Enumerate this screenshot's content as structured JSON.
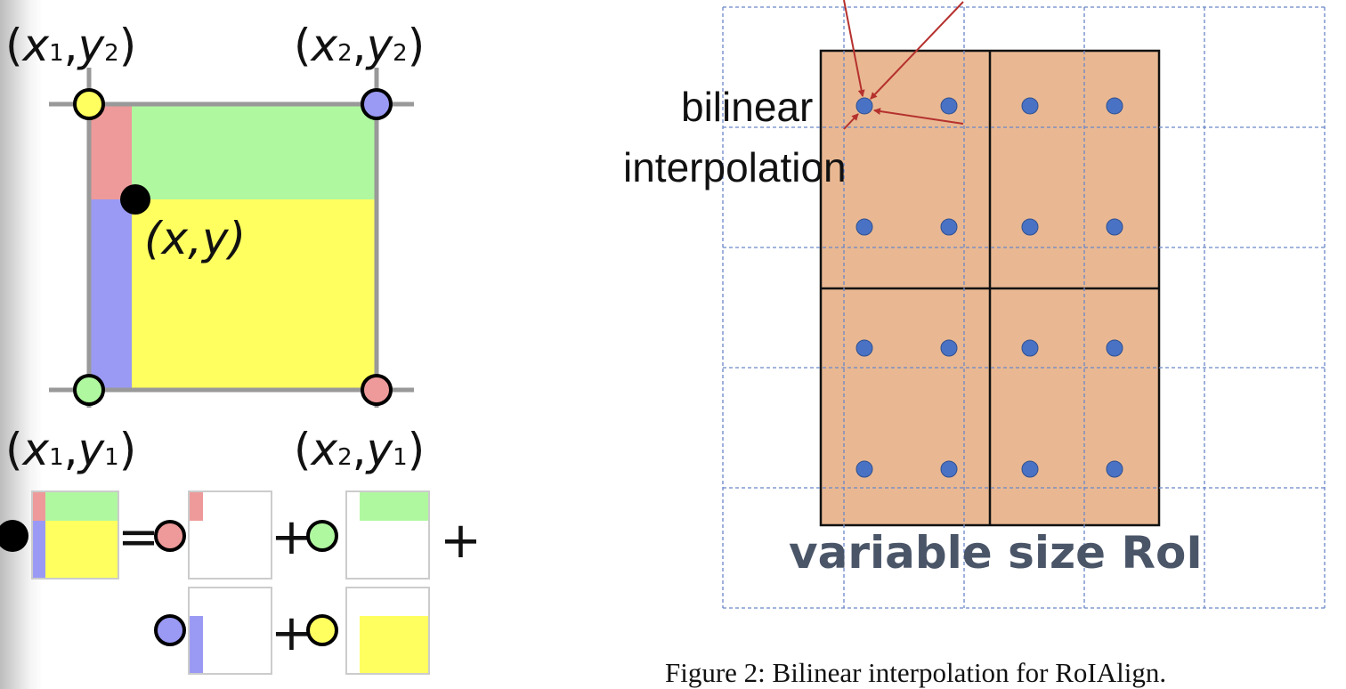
{
  "left_diagram": {
    "corners": {
      "top_left": {
        "open": "(",
        "var1": "x",
        "sub1": "1",
        "sep": ",",
        "var2": "y",
        "sub2": "2",
        "close": ")"
      },
      "top_right": {
        "open": "(",
        "var1": "x",
        "sub1": "2",
        "sep": ",",
        "var2": "y",
        "sub2": "2",
        "close": ")"
      },
      "bottom_left": {
        "open": "(",
        "var1": "x",
        "sub1": "1",
        "sep": ",",
        "var2": "y",
        "sub2": "1",
        "close": ")"
      },
      "bottom_right": {
        "open": "(",
        "var1": "x",
        "sub1": "2",
        "sep": ",",
        "var2": "y",
        "sub2": "1",
        "close": ")"
      }
    },
    "point_label": "(x,y)",
    "equation": {
      "equals": "=",
      "plus": "+"
    },
    "colors": {
      "red": "#ee9a9a",
      "green": "#b0f8a0",
      "blue": "#9a9af4",
      "yellow": "#ffff60",
      "grid": "#999999"
    }
  },
  "right_diagram": {
    "annotation_line1": "bilinear",
    "annotation_line2": "interpolation",
    "roi_label": "variable size RoI",
    "caption": "Figure 2: Bilinear interpolation for RoIAlign.",
    "colors": {
      "roi_fill": "#e9b892",
      "sample_point": "#4a72c4",
      "arrow": "#b5312e",
      "grid": "#6a86c8"
    }
  }
}
